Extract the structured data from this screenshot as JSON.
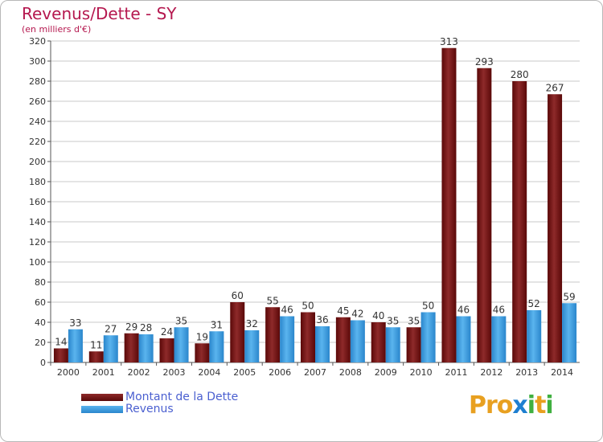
{
  "chart_data": {
    "type": "bar",
    "title": "Revenus/Dette - SY",
    "subtitle": "(en milliers d'€)",
    "categories": [
      "2000",
      "2001",
      "2002",
      "2003",
      "2004",
      "2005",
      "2006",
      "2007",
      "2008",
      "2009",
      "2010",
      "2011",
      "2012",
      "2013",
      "2014"
    ],
    "series": [
      {
        "name": "Montant de la Dette",
        "color": "#6b0c0c",
        "values": [
          14,
          11,
          29,
          24,
          19,
          60,
          55,
          50,
          45,
          40,
          35,
          313,
          293,
          280,
          267
        ]
      },
      {
        "name": "Revenus",
        "color": "#3c9bdc",
        "values": [
          33,
          27,
          28,
          35,
          31,
          32,
          46,
          36,
          42,
          35,
          50,
          46,
          46,
          52,
          59
        ]
      }
    ],
    "ylim": [
      0,
      320
    ],
    "yticks": [
      0,
      20,
      40,
      60,
      80,
      100,
      120,
      140,
      160,
      180,
      200,
      220,
      240,
      260,
      280,
      300,
      320
    ],
    "grid": true,
    "legend_position": "bottom-left"
  },
  "logo": {
    "letters": [
      "P",
      "r",
      "o",
      "x",
      "i",
      "t",
      "i"
    ],
    "colors": [
      "#e8a020",
      "#e8a020",
      "#e8a020",
      "#1e7fd0",
      "#40b040",
      "#e8a020",
      "#40b040"
    ]
  }
}
